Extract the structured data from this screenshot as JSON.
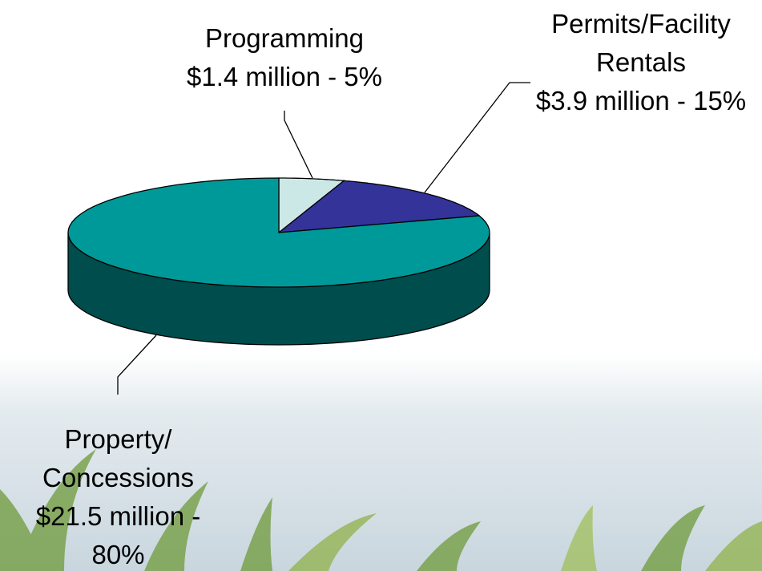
{
  "chart_data": {
    "type": "pie",
    "categories": [
      "Programming",
      "Permits/Facility Rentals",
      "Property/ Concessions"
    ],
    "values": [
      5,
      15,
      80
    ],
    "value_labels": [
      "$1.4 million - 5%",
      "$3.9 million - 15%",
      "$21.5 million - 80%"
    ],
    "colors": [
      "#cce8e6",
      "#333399",
      "#009999"
    ],
    "three_d": true
  }
}
